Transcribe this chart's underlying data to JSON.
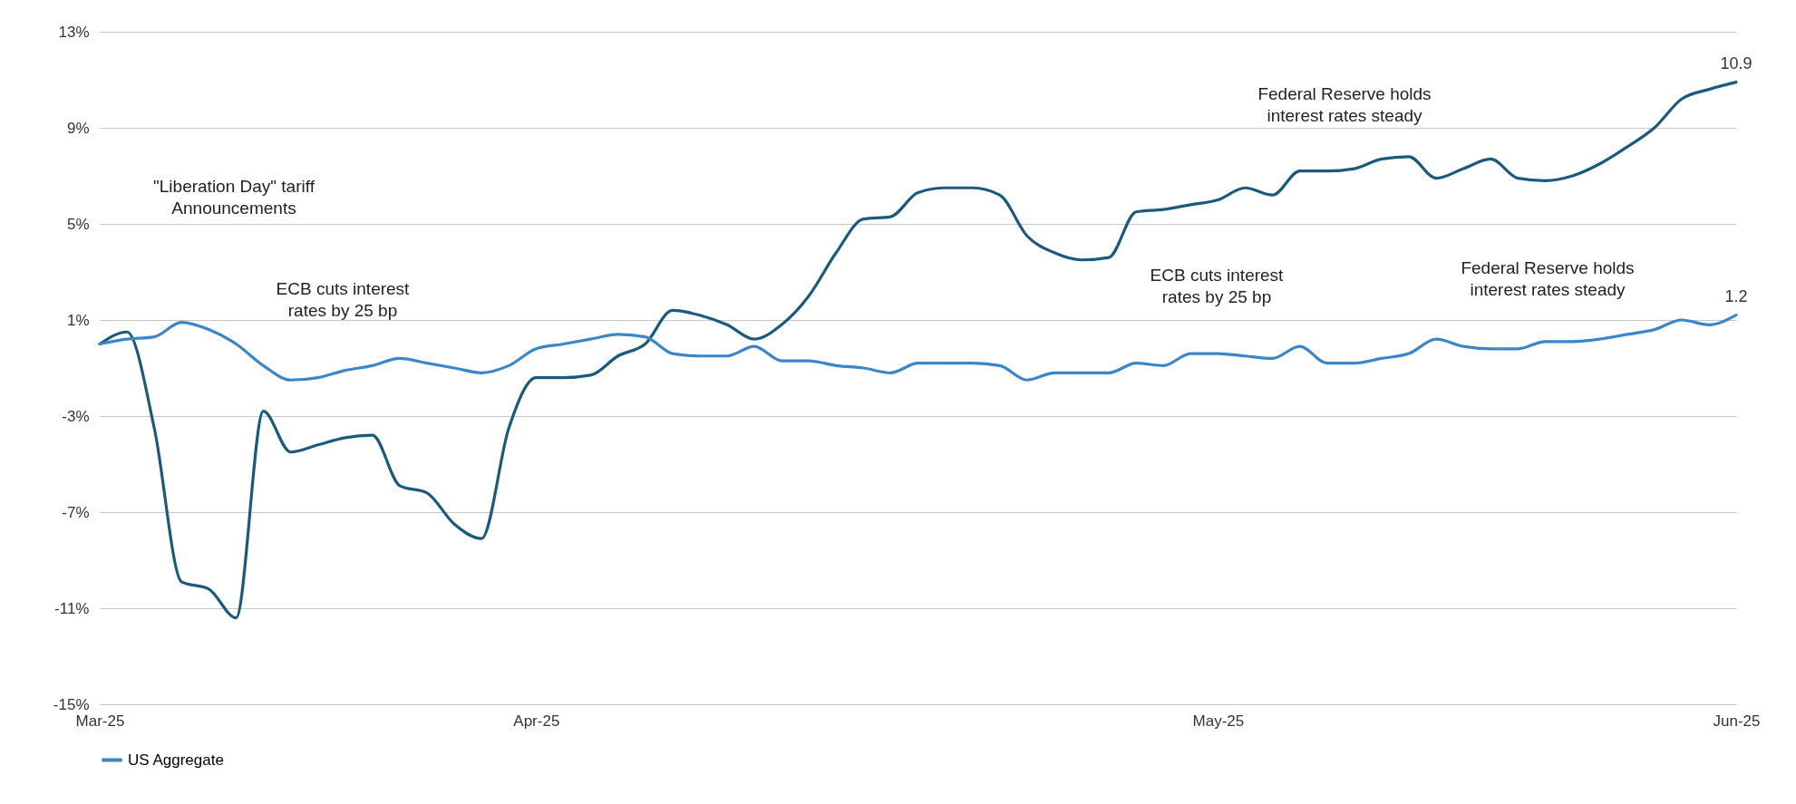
{
  "chart_data": {
    "type": "line",
    "categories": [
      "Mar-25",
      null,
      null,
      null,
      null,
      null,
      null,
      null,
      null,
      null,
      null,
      null,
      null,
      null,
      null,
      null,
      "Apr-25",
      null,
      null,
      null,
      null,
      null,
      null,
      null,
      null,
      null,
      null,
      null,
      null,
      null,
      null,
      null,
      null,
      null,
      null,
      null,
      null,
      null,
      null,
      null,
      null,
      "May-25",
      null,
      null,
      null,
      null,
      null,
      null,
      null,
      null,
      null,
      null,
      null,
      null,
      null,
      null,
      null,
      null,
      null,
      null,
      "Jun-25"
    ],
    "series": [
      {
        "color": "#1b5a7a",
        "values": [
          0,
          0.5,
          -3.5,
          -9.9,
          -10.2,
          -11.4,
          -2.8,
          -4.5,
          -4.2,
          -3.9,
          -3.8,
          -5.9,
          -6.2,
          -7.5,
          -8.1,
          -3.5,
          -1.4,
          -1.4,
          -1.3,
          -0.5,
          0.0,
          1.4,
          1.2,
          0.8,
          0.2,
          0.8,
          2.0,
          3.8,
          5.2,
          5.3,
          6.3,
          6.5,
          6.5,
          6.2,
          4.5,
          3.8,
          3.5,
          3.6,
          5.5,
          5.6,
          5.8,
          6.0,
          6.5,
          6.2,
          7.2,
          7.2,
          7.3,
          7.7,
          7.8,
          6.9,
          7.3,
          7.7,
          6.9,
          6.8,
          7.0,
          7.5,
          8.2,
          9.0,
          10.2,
          10.6,
          10.9
        ],
        "value_labels": [
          null,
          null,
          null,
          null,
          null,
          null,
          null,
          null,
          null,
          null,
          null,
          null,
          null,
          null,
          null,
          null,
          null,
          null,
          null,
          null,
          null,
          null,
          null,
          null,
          null,
          null,
          null,
          null,
          null,
          null,
          null,
          null,
          null,
          null,
          null,
          null,
          null,
          null,
          null,
          null,
          null,
          null,
          null,
          null,
          null,
          null,
          null,
          null,
          null,
          null,
          null,
          null,
          null,
          null,
          null,
          null,
          null,
          null,
          null,
          null,
          "10.9"
        ]
      },
      {
        "name": "US Aggregate",
        "color": "#3a86c8",
        "values": [
          0.0,
          0.2,
          0.3,
          0.9,
          0.6,
          0.0,
          -0.9,
          -1.5,
          -1.4,
          -1.1,
          -0.9,
          -0.6,
          -0.8,
          -1.0,
          -1.2,
          -0.9,
          -0.2,
          0.0,
          0.2,
          0.4,
          0.3,
          -0.4,
          -0.5,
          -0.5,
          -0.1,
          -0.7,
          -0.7,
          -0.9,
          -1.0,
          -1.2,
          -0.8,
          -0.8,
          -0.8,
          -0.9,
          -1.5,
          -1.2,
          -1.2,
          -1.2,
          -0.8,
          -0.9,
          -0.4,
          -0.4,
          -0.5,
          -0.6,
          -0.1,
          -0.8,
          -0.8,
          -0.6,
          -0.4,
          0.2,
          -0.1,
          -0.2,
          -0.2,
          0.1,
          0.1,
          0.2,
          0.4,
          0.6,
          1.0,
          0.8,
          1.2
        ],
        "value_labels": [
          null,
          null,
          null,
          null,
          null,
          null,
          null,
          null,
          null,
          null,
          null,
          null,
          null,
          null,
          null,
          null,
          null,
          null,
          null,
          null,
          null,
          null,
          null,
          null,
          null,
          null,
          null,
          null,
          null,
          null,
          null,
          null,
          null,
          null,
          null,
          null,
          null,
          null,
          null,
          null,
          null,
          null,
          null,
          null,
          null,
          null,
          null,
          null,
          null,
          null,
          null,
          null,
          null,
          null,
          null,
          null,
          null,
          null,
          null,
          null,
          "1.2"
        ]
      }
    ],
    "ylim": [
      -15,
      13
    ],
    "yticks": [
      {
        "value": 13,
        "label": "13%"
      },
      {
        "value": 9,
        "label": "9%"
      },
      {
        "value": 5,
        "label": "5%"
      },
      {
        "value": 1,
        "label": "1%"
      },
      {
        "value": -3,
        "label": "-3%"
      },
      {
        "value": -7,
        "label": "-7%"
      },
      {
        "value": -11,
        "label": "-11%"
      },
      {
        "value": -15,
        "label": "-15%"
      }
    ],
    "grid": "y",
    "legend": "bottom",
    "annotations": [
      "\"Liberation Day\" tariff Announcements",
      "ECB cuts interest rates by 25 bp",
      "Federal Reserve holds interest rates steady",
      "ECB cuts interest rates by 25 bp",
      "Federal Reserve holds interest rates steady"
    ]
  }
}
